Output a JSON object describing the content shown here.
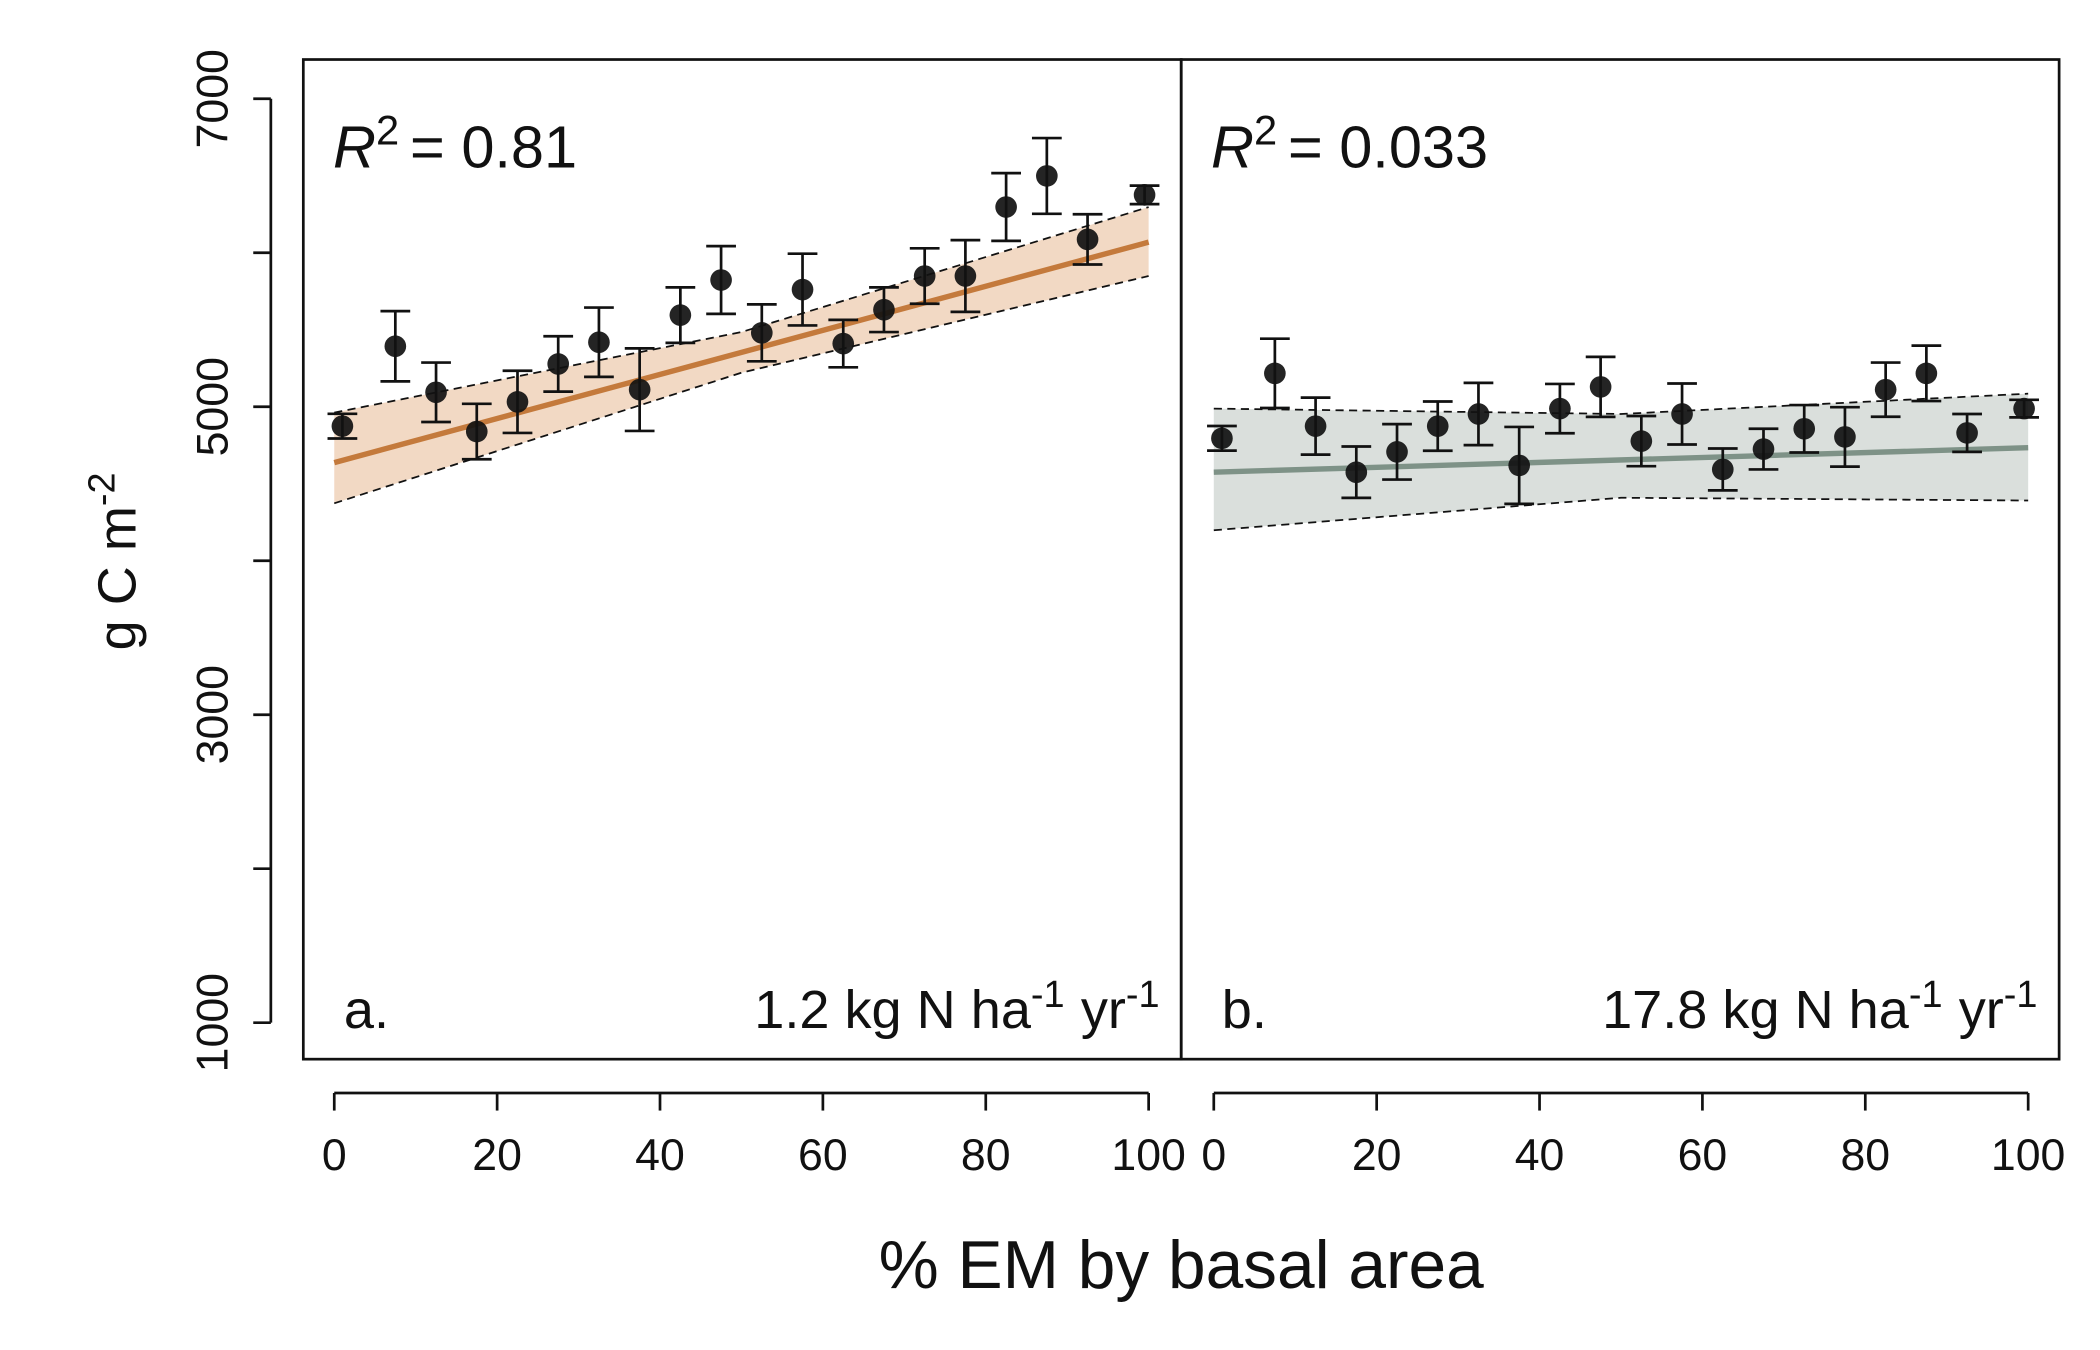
{
  "shared": {
    "ylabel": "g C m",
    "ylabel_sup": "-2",
    "xlabel": "% EM by basal area"
  },
  "chart_data": [
    {
      "type": "scatter",
      "panel_label": "a.",
      "r2_symbol": "R",
      "r2_exponent": "2",
      "r2_value": "= 0.81",
      "deposition": "1.2 kg N ha",
      "deposition_sup1": "-1",
      "deposition_unit": "yr",
      "deposition_sup2": "-1",
      "xlim": [
        -3.8,
        104
      ],
      "ylim": [
        763,
        7255
      ],
      "xticks": [
        0,
        20,
        40,
        60,
        80,
        100
      ],
      "yticks": [
        1000,
        3000,
        5000,
        7000
      ],
      "yminor_ticks": [
        2000,
        4000,
        6000
      ],
      "x": [
        1,
        7.5,
        12.5,
        17.5,
        22.5,
        27.5,
        32.5,
        37.5,
        42.5,
        47.5,
        52.5,
        57.5,
        62.5,
        67.5,
        72.5,
        77.5,
        82.5,
        87.5,
        92.5,
        99.5
      ],
      "series": [
        {
          "color": "#111111",
          "values": [
            4874,
            5393,
            5094,
            4839,
            5032,
            5278,
            5419,
            5111,
            5595,
            5823,
            5480,
            5761,
            5410,
            5630,
            5849,
            5849,
            6297,
            6499,
            6087,
            6376
          ],
          "errors": [
            80,
            228,
            193,
            180,
            202,
            180,
            225,
            268,
            180,
            220,
            185,
            233,
            154,
            145,
            180,
            233,
            220,
            246,
            163,
            60
          ]
        }
      ],
      "fit": {
        "color": "#c47a3c",
        "x": [
          0,
          100
        ],
        "values": [
          4637,
          6069
        ]
      },
      "band": {
        "color": "#f2d9c4",
        "x": [
          0,
          50,
          100
        ],
        "upper": [
          4962,
          5485,
          6297
        ],
        "lower": [
          4373,
          5221,
          5849
        ]
      }
    },
    {
      "type": "scatter",
      "panel_label": "b.",
      "r2_symbol": "R",
      "r2_exponent": "2",
      "r2_value": "= 0.033",
      "deposition": "17.8 kg N ha",
      "deposition_sup1": "-1",
      "deposition_unit": "yr",
      "deposition_sup2": "-1",
      "xlim": [
        -4,
        103.8
      ],
      "ylim": [
        763,
        7255
      ],
      "xticks": [
        0,
        20,
        40,
        60,
        80,
        100
      ],
      "x": [
        1,
        7.5,
        12.5,
        17.5,
        22.5,
        27.5,
        32.5,
        37.5,
        42.5,
        47.5,
        52.5,
        57.5,
        62.5,
        67.5,
        72.5,
        77.5,
        82.5,
        87.5,
        92.5,
        99.5
      ],
      "series": [
        {
          "color": "#111111",
          "values": [
            4795,
            5217,
            4874,
            4575,
            4707,
            4874,
            4953,
            4619,
            4988,
            5129,
            4777,
            4953,
            4593,
            4725,
            4857,
            4804,
            5111,
            5217,
            4830,
            4988
          ],
          "errors": [
            80,
            225,
            185,
            167,
            180,
            160,
            202,
            250,
            160,
            195,
            163,
            198,
            136,
            132,
            154,
            193,
            176,
            180,
            123,
            57
          ]
        }
      ],
      "fit": {
        "color": "#7e9287",
        "x": [
          0,
          100
        ],
        "values": [
          4575,
          4734
        ]
      },
      "band": {
        "color": "#dadfdc",
        "x": [
          0,
          50,
          100
        ],
        "upper": [
          4988,
          4953,
          5085
        ],
        "lower": [
          4198,
          4409,
          4391
        ]
      }
    }
  ]
}
